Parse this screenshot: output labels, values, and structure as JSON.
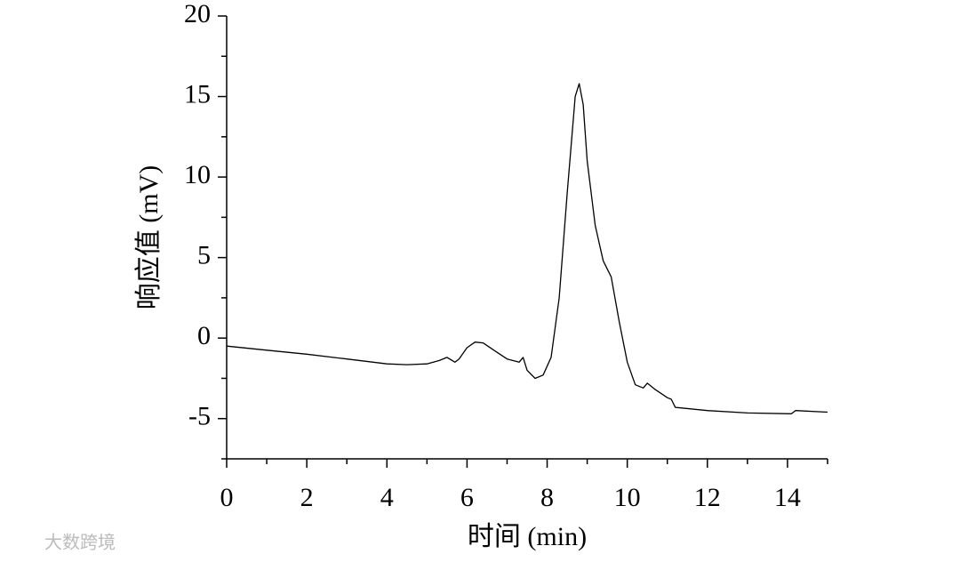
{
  "chart_data": {
    "type": "line",
    "xlabel": "时间 (min)",
    "ylabel": "响应值 (mV)",
    "xlim": [
      0,
      15
    ],
    "ylim": [
      -7.5,
      20
    ],
    "xticks": [
      0,
      2,
      4,
      6,
      8,
      10,
      12,
      14
    ],
    "yticks": [
      -5,
      0,
      5,
      10,
      15,
      20
    ],
    "xminorticks": [
      1,
      3,
      5,
      7,
      9,
      11,
      13,
      15
    ],
    "yminorticks": [
      -7.5,
      -2.5,
      2.5,
      7.5,
      12.5,
      17.5
    ],
    "color": "#000000",
    "x": [
      0,
      1,
      2,
      3,
      4,
      4.5,
      5,
      5.3,
      5.5,
      5.7,
      5.8,
      6.0,
      6.2,
      6.4,
      6.7,
      7.0,
      7.3,
      7.4,
      7.5,
      7.7,
      7.9,
      8.1,
      8.3,
      8.5,
      8.7,
      8.8,
      8.9,
      9.0,
      9.2,
      9.4,
      9.6,
      9.8,
      10.0,
      10.2,
      10.4,
      10.5,
      10.7,
      11.0,
      11.1,
      11.2,
      12,
      13,
      14.1,
      14.2,
      15
    ],
    "values": [
      -0.5,
      -0.75,
      -1.0,
      -1.3,
      -1.6,
      -1.65,
      -1.6,
      -1.4,
      -1.2,
      -1.5,
      -1.3,
      -0.6,
      -0.25,
      -0.3,
      -0.8,
      -1.3,
      -1.5,
      -1.2,
      -2.0,
      -2.5,
      -2.3,
      -1.2,
      2.5,
      9,
      15,
      15.8,
      14.5,
      11,
      7,
      4.8,
      3.8,
      1,
      -1.5,
      -2.9,
      -3.1,
      -2.8,
      -3.2,
      -3.7,
      -3.8,
      -4.3,
      -4.5,
      -4.65,
      -4.7,
      -4.5,
      -4.6
    ]
  },
  "watermark": "大数跨境"
}
